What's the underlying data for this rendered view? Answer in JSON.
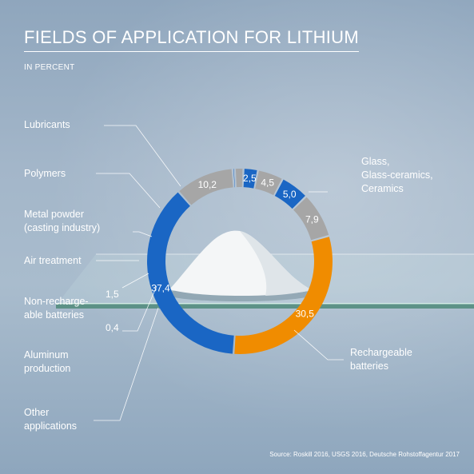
{
  "title": "FIELDS OF APPLICATION FOR LITHIUM",
  "subtitle": "IN PERCENT",
  "source": "Source: Roskill 2016, USGS 2016, Deutsche Rohstoffagentur 2017",
  "labels": {
    "lubricants": "Lubricants",
    "polymers": "Polymers",
    "metal_powder": "Metal powder\n(casting industry)",
    "air_treatment": "Air treatment",
    "non_rechargeable": "Non-recharge-\nable batteries",
    "aluminum": "Aluminum\nproduction",
    "other": "Other\napplications",
    "glass": "Glass,\nGlass-ceramics,\nCeramics",
    "rechargeable": "Rechargeable\nbatteries"
  },
  "chart_data": {
    "type": "pie",
    "donut": true,
    "title": "FIELDS OF APPLICATION FOR LITHIUM",
    "subtitle": "IN PERCENT",
    "slices": [
      {
        "label": "Glass, Glass-ceramics, Ceramics",
        "value": 30.5,
        "display": "30,5",
        "color": "#f08c00"
      },
      {
        "label": "Rechargeable batteries",
        "value": 37.4,
        "display": "37,4",
        "color": "#1a66c4"
      },
      {
        "label": "Other applications",
        "value": 10.2,
        "display": "10,2",
        "color": "#a6a6a6"
      },
      {
        "label": "Aluminum production",
        "value": 0.4,
        "display": "0,4",
        "color": "#1a66c4"
      },
      {
        "label": "Non-rechargeable batteries",
        "value": 1.5,
        "display": "1,5",
        "color": "#a6a6a6"
      },
      {
        "label": "Air treatment",
        "value": 2.5,
        "display": "2,5",
        "color": "#1a66c4"
      },
      {
        "label": "Metal powder (casting industry)",
        "value": 4.5,
        "display": "4,5",
        "color": "#a6a6a6"
      },
      {
        "label": "Polymers",
        "value": 5.0,
        "display": "5,0",
        "color": "#1a66c4"
      },
      {
        "label": "Lubricants",
        "value": 7.9,
        "display": "7,9",
        "color": "#a6a6a6"
      }
    ]
  }
}
